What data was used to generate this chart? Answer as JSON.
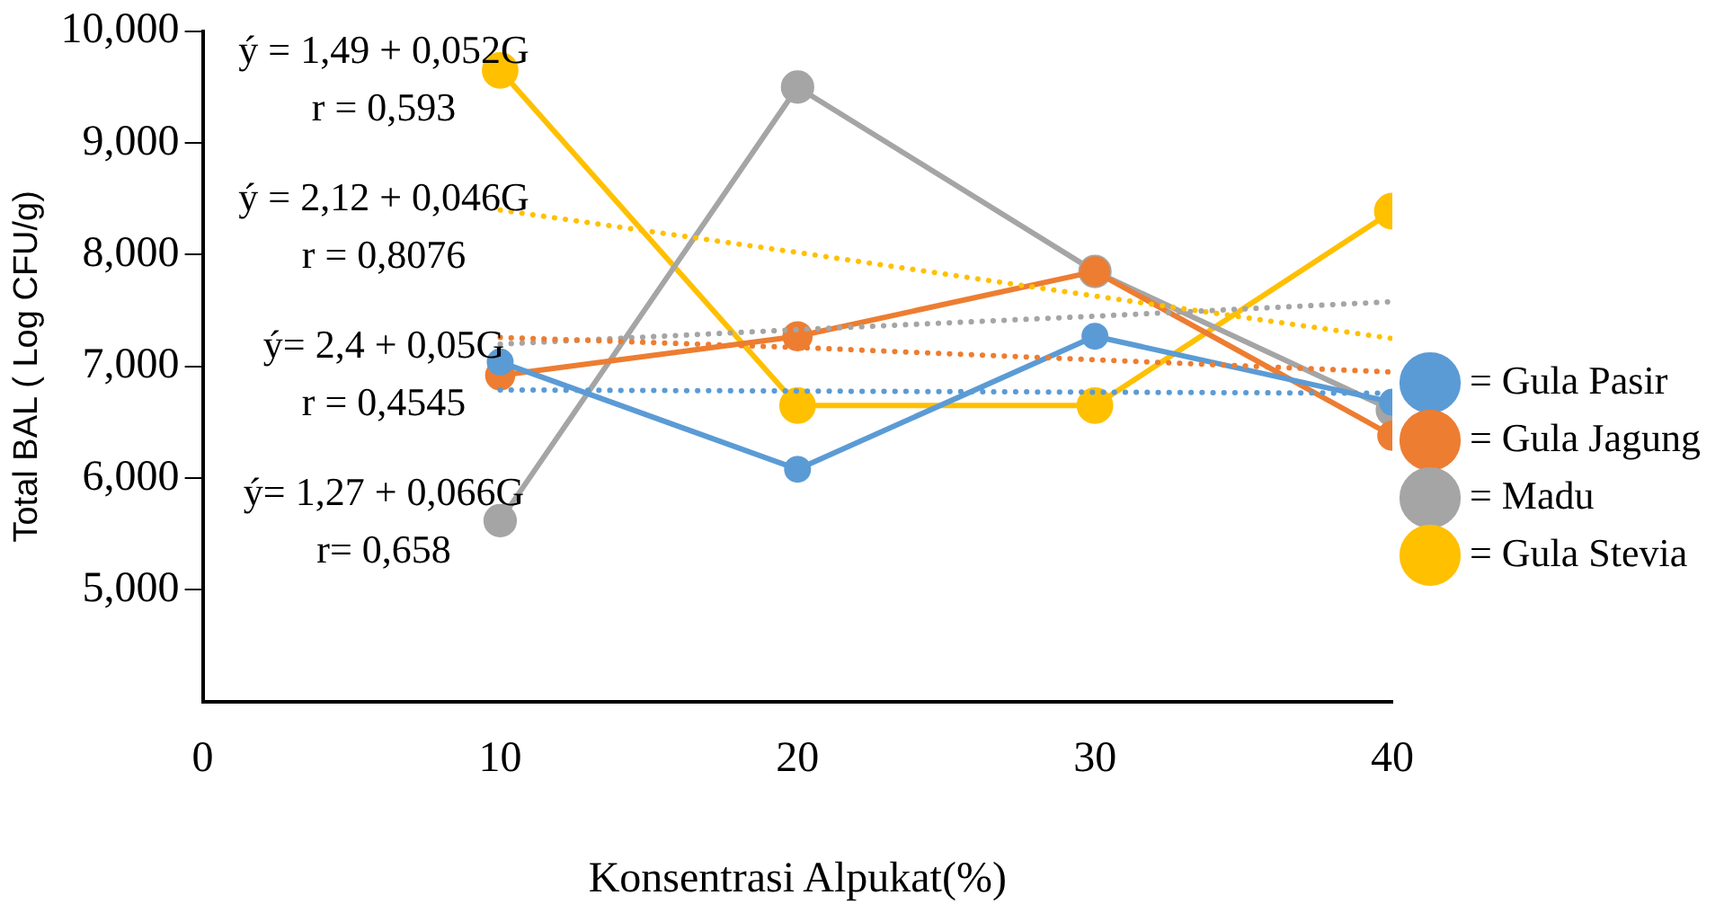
{
  "chart_data": {
    "type": "line",
    "xlabel": "Konsentrasi Alpukat(%)",
    "ylabel": "Total BAL ( Log CFU/g)",
    "x": [
      10,
      20,
      30,
      40
    ],
    "xlim": [
      0,
      40
    ],
    "xticks": [
      0,
      10,
      20,
      30,
      40
    ],
    "ylim": [
      4,
      10
    ],
    "yticks": [
      {
        "value": 5,
        "label": "5,000"
      },
      {
        "value": 6,
        "label": "6,000"
      },
      {
        "value": 7,
        "label": "7,000"
      },
      {
        "value": 8,
        "label": "8,000"
      },
      {
        "value": 9,
        "label": "9,000"
      },
      {
        "value": 10,
        "label": "10,000"
      }
    ],
    "grid": false,
    "legend": "right",
    "marker": "circle",
    "line_style": "solid",
    "series": [
      {
        "name": "= Gula Pasir",
        "color": "#5b9bd5",
        "values": [
          7.04,
          6.08,
          7.27,
          6.68
        ]
      },
      {
        "name": "= Gula Jagung",
        "color": "#ed7d31",
        "values": [
          6.92,
          7.27,
          7.85,
          6.38
        ]
      },
      {
        "name": "= Madu",
        "color": "#a5a5a5",
        "values": [
          5.62,
          9.5,
          7.85,
          6.61
        ]
      },
      {
        "name": "= Gula Stevia",
        "color": "#ffc000",
        "values": [
          9.65,
          6.65,
          6.65,
          8.39
        ]
      },
      {
        "type": "line",
        "color": "#5b9bd5",
        "values": [
          6.79,
          6.78,
          6.77,
          6.76
        ],
        "marker": "none",
        "line_style": "dotted"
      },
      {
        "type": "line",
        "color": "#ed7d31",
        "values": [
          7.26,
          7.17,
          7.06,
          6.95
        ],
        "marker": "none",
        "line_style": "dotted"
      },
      {
        "type": "line",
        "color": "#a5a5a5",
        "values": [
          7.2,
          7.33,
          7.45,
          7.58
        ],
        "marker": "none",
        "line_style": "dotted"
      },
      {
        "type": "line",
        "color": "#ffc000",
        "values": [
          8.4,
          8.02,
          7.63,
          7.25
        ],
        "marker": "none",
        "line_style": "dotted"
      }
    ],
    "annotations": [
      "ý = 1,49 + 0,052G",
      "r = 0,593",
      "ý = 2,12 + 0,046G",
      "r = 0,8076",
      "ý= 2,4 + 0,05G",
      "r = 0,4545",
      "ý= 1,27 + 0,066G",
      "r= 0,658"
    ]
  }
}
